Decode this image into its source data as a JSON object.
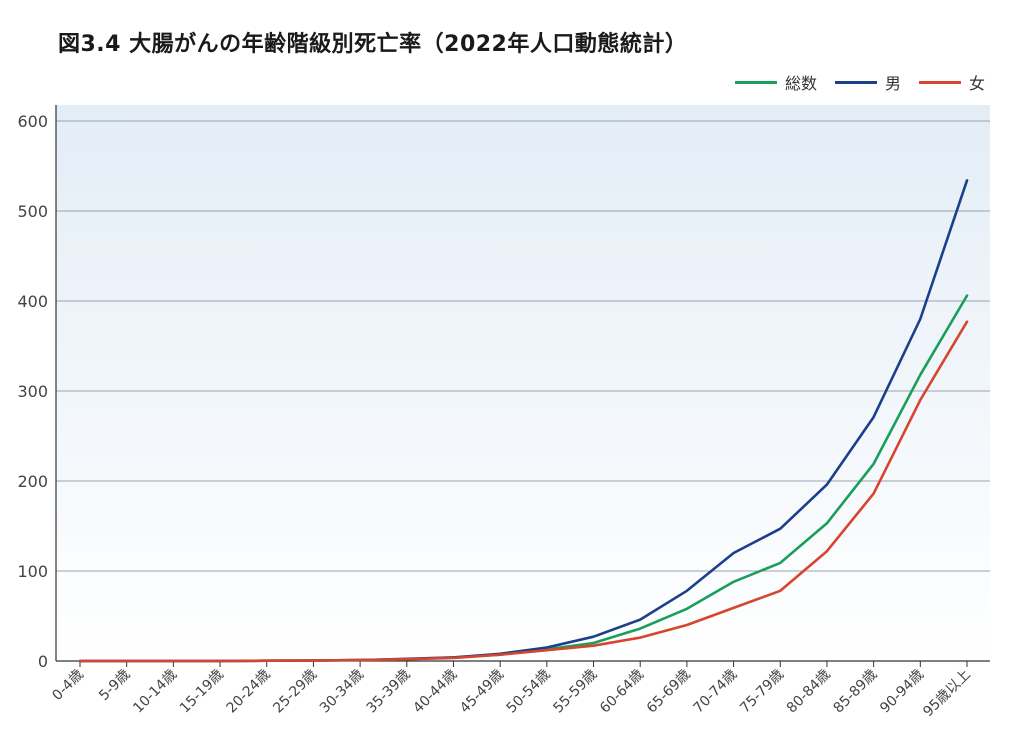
{
  "chart_data": {
    "type": "line",
    "title": "図3.4 大腸がんの年齢階級別死亡率（2022年人口動態統計）",
    "xlabel": "",
    "ylabel": "",
    "categories": [
      "0-4歳",
      "5-9歳",
      "10-14歳",
      "15-19歳",
      "20-24歳",
      "25-29歳",
      "30-34歳",
      "35-39歳",
      "40-44歳",
      "45-49歳",
      "50-54歳",
      "55-59歳",
      "60-64歳",
      "65-69歳",
      "70-74歳",
      "75-79歳",
      "80-84歳",
      "85-89歳",
      "90-94歳",
      "95歳以上"
    ],
    "ylim": [
      0,
      600
    ],
    "yticks": [
      0,
      100,
      200,
      300,
      400,
      500,
      600
    ],
    "grid": true,
    "legend_position": "top-right",
    "series": [
      {
        "name": "総数",
        "color": "#1a9e5c",
        "values": [
          0,
          0,
          0,
          0,
          0.3,
          0.5,
          1,
          2,
          4,
          7,
          13,
          20,
          36,
          58,
          88,
          109,
          153,
          219,
          318,
          406
        ]
      },
      {
        "name": "男",
        "color": "#1c3f8a",
        "values": [
          0,
          0,
          0,
          0,
          0.3,
          0.5,
          1,
          2.5,
          4,
          8,
          15,
          27,
          46,
          78,
          120,
          147,
          196,
          271,
          380,
          534
        ]
      },
      {
        "name": "女",
        "color": "#d6452e",
        "values": [
          0,
          0,
          0,
          0,
          0.3,
          0.5,
          1,
          2,
          3.5,
          7,
          12,
          17,
          26,
          40,
          59,
          78,
          122,
          186,
          290,
          377
        ]
      }
    ]
  }
}
